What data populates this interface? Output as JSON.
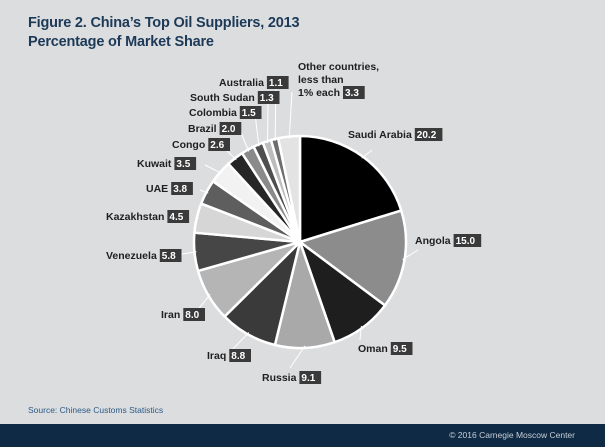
{
  "title_line1": "Figure 2. China’s Top Oil Suppliers, 2013",
  "title_line2": "Percentage of Market Share",
  "source": "Source: Chinese Customs Statistics",
  "footer": "© 2016 Carnegie Moscow Center",
  "chart_data": {
    "type": "pie",
    "title": "Figure 2. China’s Top Oil Suppliers, 2013",
    "subtitle": "Percentage of Market Share",
    "slices": [
      {
        "label": "Saudi Arabia",
        "value": 20.2,
        "value_label": "20.2",
        "color": "#000000"
      },
      {
        "label": "Angola",
        "value": 15.0,
        "value_label": "15.0",
        "color": "#8c8c8c"
      },
      {
        "label": "Oman",
        "value": 9.5,
        "value_label": "9.5",
        "color": "#1e1e1e"
      },
      {
        "label": "Russia",
        "value": 9.1,
        "value_label": "9.1",
        "color": "#a9a9a9"
      },
      {
        "label": "Iraq",
        "value": 8.8,
        "value_label": "8.8",
        "color": "#3a3a3a"
      },
      {
        "label": "Iran",
        "value": 8.0,
        "value_label": "8.0",
        "color": "#b5b5b5"
      },
      {
        "label": "Venezuela",
        "value": 5.8,
        "value_label": "5.8",
        "color": "#464646"
      },
      {
        "label": "Kazakhstan",
        "value": 4.5,
        "value_label": "4.5",
        "color": "#d6d6d6"
      },
      {
        "label": "UAE",
        "value": 3.8,
        "value_label": "3.8",
        "color": "#5e5e5e"
      },
      {
        "label": "Kuwait",
        "value": 3.5,
        "value_label": "3.5",
        "color": "#f2f2f2"
      },
      {
        "label": "Congo",
        "value": 2.6,
        "value_label": "2.6",
        "color": "#262626"
      },
      {
        "label": "Brazil",
        "value": 2.0,
        "value_label": "2.0",
        "color": "#8a8a8a"
      },
      {
        "label": "Colombia",
        "value": 1.5,
        "value_label": "1.5",
        "color": "#4e4e4e"
      },
      {
        "label": "South Sudan",
        "value": 1.3,
        "value_label": "1.3",
        "color": "#bdbdbd"
      },
      {
        "label": "Australia",
        "value": 1.1,
        "value_label": "1.1",
        "color": "#6e6e6e"
      },
      {
        "label": "Other countries, less than 1% each",
        "label_lines": [
          "Other countries,",
          "less than",
          "1% each"
        ],
        "value": 3.3,
        "value_label": "3.3",
        "color": "#e3e3e3"
      }
    ]
  }
}
